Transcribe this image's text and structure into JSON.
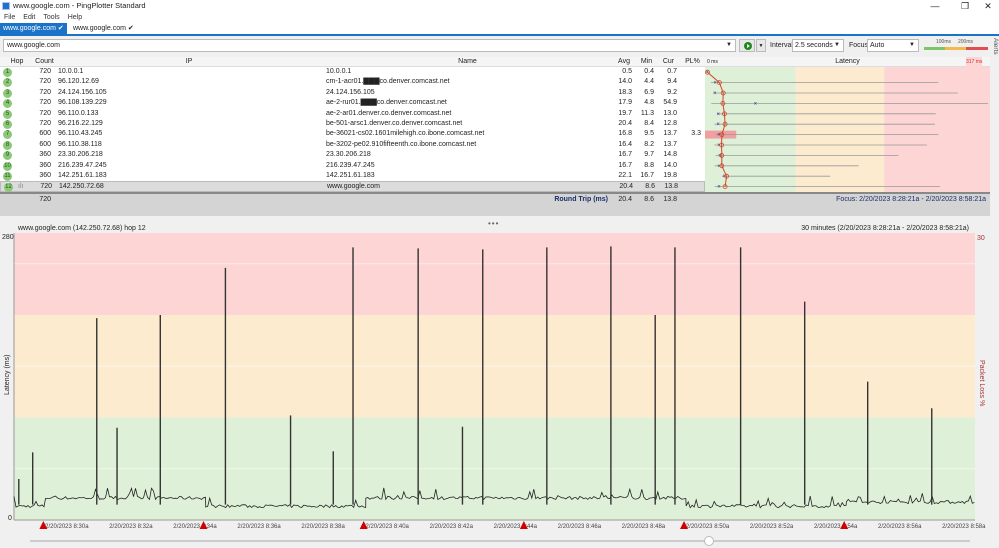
{
  "window": {
    "title": "www.google.com - PingPlotter Standard",
    "minimize": "—",
    "restore": "❐",
    "close": "✕"
  },
  "menu": [
    "File",
    "Edit",
    "Tools",
    "Help"
  ],
  "tabs": [
    {
      "label": "www.google.com ✔",
      "active": true
    },
    {
      "label": "www.google.com ✔",
      "active": false
    }
  ],
  "toolbar": {
    "target": "www.google.com",
    "interval_label": "Interval",
    "interval": "2.5 seconds",
    "focus_label": "Focus",
    "focus": "Auto",
    "legend_100": "100ms",
    "legend_200": "200ms",
    "alerts": "Alerts",
    "play_icon": "play-icon"
  },
  "table": {
    "headers": {
      "hop": "Hop",
      "count": "Count",
      "ip": "IP",
      "name": "Name",
      "avg": "Avg",
      "min": "Min",
      "cur": "Cur",
      "pl": "PL%",
      "lat_min": "0 ms",
      "latency": "Latency",
      "lat_max": "317 ms"
    },
    "latency_scale_max_ms": 317,
    "rows": [
      {
        "hop": "1",
        "count": "720",
        "ip": "10.0.0.1",
        "name": "10.0.0.1",
        "avg": "0.5",
        "min": "0.4",
        "cur": "0.7",
        "pl": "",
        "max": 1
      },
      {
        "hop": "2",
        "count": "720",
        "ip": "96.120.12.69",
        "name": "cm-1-acr01.▇▇▇co.denver.comcast.net",
        "avg": "14.0",
        "min": "4.4",
        "cur": "9.4",
        "pl": "",
        "max": 261
      },
      {
        "hop": "3",
        "count": "720",
        "ip": "24.124.156.105",
        "name": "24.124.156.105",
        "avg": "18.3",
        "min": "6.9",
        "cur": "9.2",
        "pl": "",
        "max": 283
      },
      {
        "hop": "4",
        "count": "720",
        "ip": "96.108.139.229",
        "name": "ae-2-rur01.▇▇▇co.denver.comcast.net",
        "avg": "17.9",
        "min": "4.8",
        "cur": "54.9",
        "pl": "",
        "max": 317
      },
      {
        "hop": "5",
        "count": "720",
        "ip": "96.110.0.133",
        "name": "ae-2-ar01.denver.co.denver.comcast.net",
        "avg": "19.7",
        "min": "11.3",
        "cur": "13.0",
        "pl": "",
        "max": 258
      },
      {
        "hop": "6",
        "count": "720",
        "ip": "96.216.22.129",
        "name": "be-501-arsc1.denver.co.denver.comcast.net",
        "avg": "20.4",
        "min": "8.4",
        "cur": "12.8",
        "pl": "",
        "max": 257
      },
      {
        "hop": "7",
        "count": "600",
        "ip": "96.110.43.245",
        "name": "be-36021-cs02.1601milehigh.co.ibone.comcast.net",
        "avg": "16.8",
        "min": "9.5",
        "cur": "13.7",
        "pl": "3.3",
        "max": 261
      },
      {
        "hop": "8",
        "count": "600",
        "ip": "96.110.38.118",
        "name": "be-3202-pe02.910fifteenth.co.ibone.comcast.net",
        "avg": "16.4",
        "min": "8.2",
        "cur": "13.7",
        "pl": "",
        "max": 248
      },
      {
        "hop": "9",
        "count": "360",
        "ip": "23.30.206.218",
        "name": "23.30.206.218",
        "avg": "16.7",
        "min": "9.7",
        "cur": "14.8",
        "pl": "",
        "max": 216
      },
      {
        "hop": "10",
        "count": "360",
        "ip": "216.239.47.245",
        "name": "216.239.47.245",
        "avg": "16.7",
        "min": "8.8",
        "cur": "14.0",
        "pl": "",
        "max": 171
      },
      {
        "hop": "11",
        "count": "360",
        "ip": "142.251.61.183",
        "name": "142.251.61.183",
        "avg": "22.1",
        "min": "16.7",
        "cur": "19.8",
        "pl": "",
        "max": 139
      },
      {
        "hop": "12",
        "count": "720",
        "ip": "142.250.72.68",
        "name": "www.google.com",
        "avg": "20.4",
        "min": "8.6",
        "cur": "13.8",
        "pl": "",
        "max": 263,
        "selected": true
      }
    ],
    "summary": {
      "count": "720",
      "label": "Round Trip (ms)",
      "avg": "20.4",
      "min": "8.6",
      "cur": "13.8",
      "focus": "Focus: 2/20/2023 8:28:21a - 2/20/2023 8:58:21a"
    }
  },
  "colors": {
    "green": "#dff0d8",
    "yellow": "#fdebd0",
    "red": "#fdd5d5",
    "accent": "#1a73c8",
    "alert": "#d00000"
  },
  "chart_data": {
    "type": "line",
    "title": "www.google.com (142.250.72.68) hop 12",
    "range_label": "30 minutes (2/20/2023 8:28:21a - 2/20/2023 8:58:21a)",
    "ylabel": "Latency (ms)",
    "y2label": "Packet Loss %",
    "ylim": [
      0,
      280
    ],
    "y_top_label": "280",
    "y_bottom_label": "0",
    "y2_top_label": "30",
    "xlim": [
      "8:28:21",
      "8:58:21"
    ],
    "bands": [
      {
        "from": 0,
        "to": 100,
        "color": "#dff0d8"
      },
      {
        "from": 100,
        "to": 200,
        "color": "#fdebd0"
      },
      {
        "from": 200,
        "to": 280,
        "color": "#fdd5d5"
      }
    ],
    "x_tick_labels": [
      "2/20/2023 8:30a",
      "2/20/2023 8:32a",
      "2/20/2023 8:34a",
      "2/20/2023 8:36a",
      "2/20/2023 8:38a",
      "2/20/2023 8:40a",
      "2/20/2023 8:42a",
      "2/20/2023 8:44a",
      "2/20/2023 8:46a",
      "2/20/2023 8:48a",
      "2/20/2023 8:50a",
      "2/20/2023 8:52a",
      "2/20/2023 8:54a",
      "2/20/2023 8:56a",
      "2/20/2023 8:58a"
    ],
    "baseline": [
      {
        "from": "8:28:21",
        "to": "8:29:20",
        "ms": 12
      },
      {
        "from": "8:29:20",
        "to": "8:34:20",
        "ms": 20
      },
      {
        "from": "8:34:20",
        "to": "8:39:20",
        "ms": 12
      },
      {
        "from": "8:39:20",
        "to": "8:49:20",
        "ms": 20
      },
      {
        "from": "8:49:20",
        "to": "8:54:20",
        "ms": 12
      },
      {
        "from": "8:54:20",
        "to": "8:58:21",
        "ms": 16
      }
    ],
    "spikes": [
      {
        "t": "8:28:30",
        "ms": 40
      },
      {
        "t": "8:28:56",
        "ms": 66
      },
      {
        "t": "8:30:56",
        "ms": 197
      },
      {
        "t": "8:31:34",
        "ms": 90
      },
      {
        "t": "8:32:55",
        "ms": 200
      },
      {
        "t": "8:34:57",
        "ms": 246
      },
      {
        "t": "8:36:59",
        "ms": 102
      },
      {
        "t": "8:38:19",
        "ms": 67
      },
      {
        "t": "8:38:56",
        "ms": 266
      },
      {
        "t": "8:40:58",
        "ms": 265
      },
      {
        "t": "8:42:21",
        "ms": 91
      },
      {
        "t": "8:42:59",
        "ms": 264
      },
      {
        "t": "8:44:59",
        "ms": 266
      },
      {
        "t": "8:46:59",
        "ms": 267
      },
      {
        "t": "8:48:22",
        "ms": 200
      },
      {
        "t": "8:48:59",
        "ms": 266
      },
      {
        "t": "8:51:02",
        "ms": 266
      },
      {
        "t": "8:53:02",
        "ms": 213
      },
      {
        "t": "8:55:00",
        "ms": 135
      },
      {
        "t": "8:57:00",
        "ms": 109
      }
    ],
    "alerts": [
      "8:29:16",
      "8:34:16",
      "8:39:16",
      "8:44:16",
      "8:49:16",
      "8:54:16"
    ]
  }
}
